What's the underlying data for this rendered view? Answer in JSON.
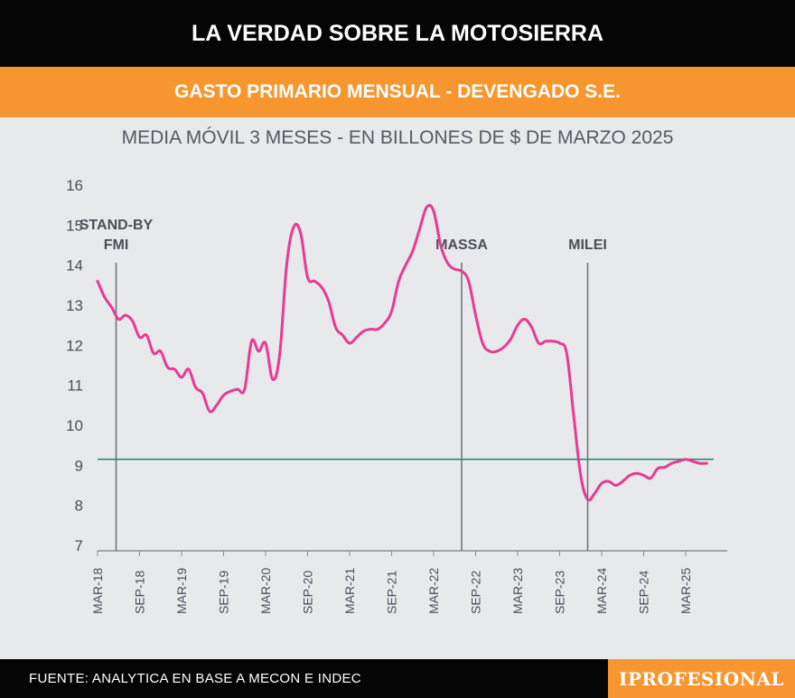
{
  "header": {
    "title": "LA VERDAD SOBRE LA MOTOSIERRA",
    "subtitle": "GASTO PRIMARIO MENSUAL - DEVENGADO S.E."
  },
  "footer": {
    "source": "FUENTE: ANALYTICA EN BASE A MECON E INDEC",
    "logo": "IPROFESIONAL"
  },
  "colors": {
    "line": "#e83a94",
    "reference": "#2f7a66",
    "event": "#6a6e75",
    "accent": "#f7962f"
  },
  "chart_data": {
    "type": "line",
    "title": "MEDIA MÓVIL 3 MESES - EN BILLONES DE $ DE MARZO 2025",
    "xlabel": "",
    "ylabel": "",
    "ylim": [
      7,
      16
    ],
    "yticks": [
      7,
      8,
      9,
      10,
      11,
      12,
      13,
      14,
      15,
      16
    ],
    "xtick_labels": [
      "MAR-18",
      "SEP-18",
      "MAR-19",
      "SEP-19",
      "MAR-20",
      "SEP-20",
      "MAR-21",
      "SEP-21",
      "MAR-22",
      "SEP-22",
      "MAR-23",
      "SEP-23",
      "MAR-24",
      "SEP-24",
      "MAR-25"
    ],
    "reference_line": 9.15,
    "events": [
      {
        "label_lines": [
          "STAND-BY",
          "FMI"
        ],
        "x_month": 2
      },
      {
        "label_lines": [
          "MASSA"
        ],
        "x_month": 52
      },
      {
        "label_lines": [
          "MILEI"
        ],
        "x_month": 70
      }
    ],
    "series": [
      {
        "name": "Gasto primario mensual",
        "x_month": [
          0,
          1,
          2,
          3,
          4,
          5,
          6,
          7,
          8,
          9,
          10,
          11,
          12,
          13,
          14,
          15,
          16,
          17,
          18,
          19,
          20,
          21,
          22,
          23,
          24,
          25,
          26,
          27,
          28,
          29,
          30,
          31,
          32,
          33,
          34,
          35,
          36,
          37,
          38,
          39,
          40,
          41,
          42,
          43,
          44,
          45,
          46,
          47,
          48,
          49,
          50,
          51,
          52,
          53,
          54,
          55,
          56,
          57,
          58,
          59,
          60,
          61,
          62,
          63,
          64,
          65,
          66,
          67,
          68,
          69,
          70,
          71,
          72,
          73,
          74,
          75,
          76,
          77,
          78,
          79,
          80,
          81,
          82,
          83,
          84,
          85,
          86,
          87
        ],
        "values": [
          13.6,
          13.2,
          12.95,
          12.65,
          12.75,
          12.6,
          12.2,
          12.25,
          11.8,
          11.85,
          11.45,
          11.4,
          11.2,
          11.4,
          10.95,
          10.8,
          10.35,
          10.5,
          10.75,
          10.85,
          10.9,
          10.9,
          12.1,
          11.85,
          12.05,
          11.15,
          11.75,
          14.0,
          14.95,
          14.8,
          13.7,
          13.6,
          13.45,
          13.1,
          12.45,
          12.25,
          12.05,
          12.2,
          12.35,
          12.4,
          12.4,
          12.55,
          12.85,
          13.6,
          14.0,
          14.35,
          14.9,
          15.45,
          15.35,
          14.5,
          14.05,
          13.9,
          13.85,
          13.6,
          12.75,
          12.05,
          11.85,
          11.85,
          11.95,
          12.15,
          12.5,
          12.65,
          12.45,
          12.05,
          12.1,
          12.1,
          12.05,
          11.8,
          10.25,
          8.75,
          8.15,
          8.3,
          8.55,
          8.6,
          8.5,
          8.6,
          8.75,
          8.8,
          8.75,
          8.68,
          8.92,
          8.95,
          9.05,
          9.1,
          9.15,
          9.1,
          9.05,
          9.05
        ]
      }
    ]
  }
}
